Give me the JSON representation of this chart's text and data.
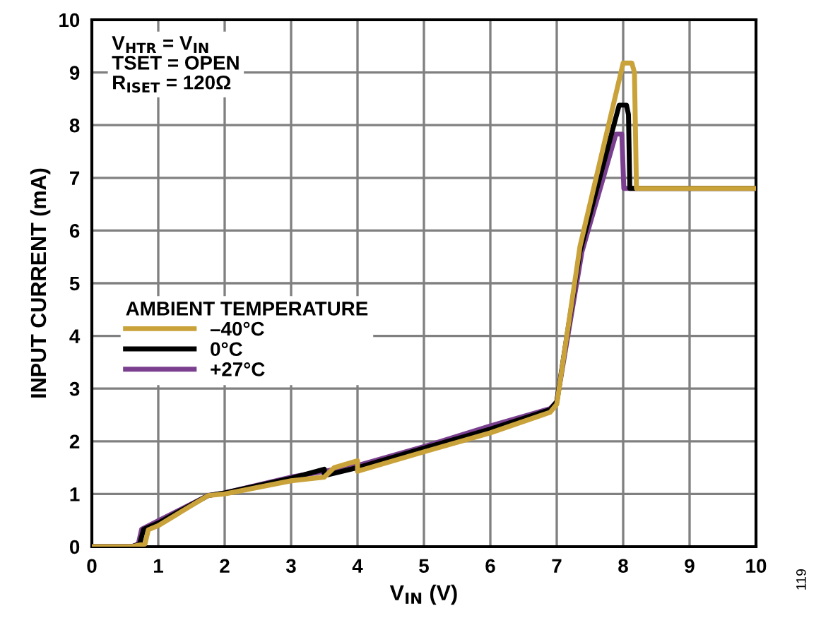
{
  "chart_data": {
    "type": "line",
    "xlabel": "V$_{IN}$ (V)",
    "ylabel": "INPUT CURRENT (mA)",
    "legend_title": "AMBIENT TEMPERATURE",
    "legend": "bottom left",
    "annotations": [
      "V$_{HTR}$ = V$_{IN}$\nTSET = OPEN\nR$_{ISET}$ = 120Ω",
      "119"
    ],
    "xlim": [
      0,
      10
    ],
    "ylim": [
      0,
      10
    ],
    "xticks": [
      0,
      1,
      2,
      3,
      4,
      5,
      6,
      7,
      8,
      9,
      10
    ],
    "yticks": [
      0,
      1,
      2,
      3,
      4,
      5,
      6,
      7,
      8,
      9,
      10
    ],
    "grid": true,
    "series": [
      {
        "name": "–40°C",
        "color": "#c9a23a",
        "x": [
          0,
          0.6,
          0.8,
          0.85,
          1.0,
          1.75,
          2.0,
          3.0,
          3.5,
          3.65,
          4.0,
          4.0,
          5.0,
          6.0,
          6.9,
          7.0,
          7.35,
          8.0,
          8.13,
          8.17,
          8.2,
          10
        ],
        "values": [
          0,
          0,
          0.05,
          0.32,
          0.4,
          0.97,
          1.0,
          1.25,
          1.32,
          1.5,
          1.63,
          1.43,
          1.8,
          2.16,
          2.55,
          2.7,
          5.7,
          9.18,
          9.18,
          9.0,
          6.8,
          6.8
        ]
      },
      {
        "name": "0°C",
        "color": "#000000",
        "x": [
          0,
          0.6,
          0.72,
          0.78,
          1.0,
          1.75,
          2.0,
          3.0,
          3.5,
          3.5,
          4.0,
          5.0,
          6.0,
          6.9,
          7.0,
          7.35,
          7.94,
          8.05,
          8.08,
          8.1,
          10
        ],
        "values": [
          0,
          0,
          0.05,
          0.33,
          0.45,
          0.97,
          1.02,
          1.3,
          1.47,
          1.35,
          1.5,
          1.87,
          2.23,
          2.6,
          2.75,
          5.6,
          8.38,
          8.38,
          8.2,
          6.8,
          6.8
        ]
      },
      {
        "name": "+27°C",
        "color": "#7b3f8f",
        "x": [
          0,
          0.6,
          0.7,
          0.75,
          1.0,
          1.75,
          2.0,
          3.0,
          4.0,
          5.0,
          6.0,
          6.9,
          7.0,
          7.38,
          7.89,
          7.98,
          8.01,
          10
        ],
        "values": [
          0,
          0,
          0.05,
          0.33,
          0.49,
          0.97,
          1.02,
          1.32,
          1.54,
          1.9,
          2.29,
          2.62,
          2.75,
          5.6,
          7.83,
          7.83,
          6.8,
          6.8
        ]
      }
    ]
  }
}
